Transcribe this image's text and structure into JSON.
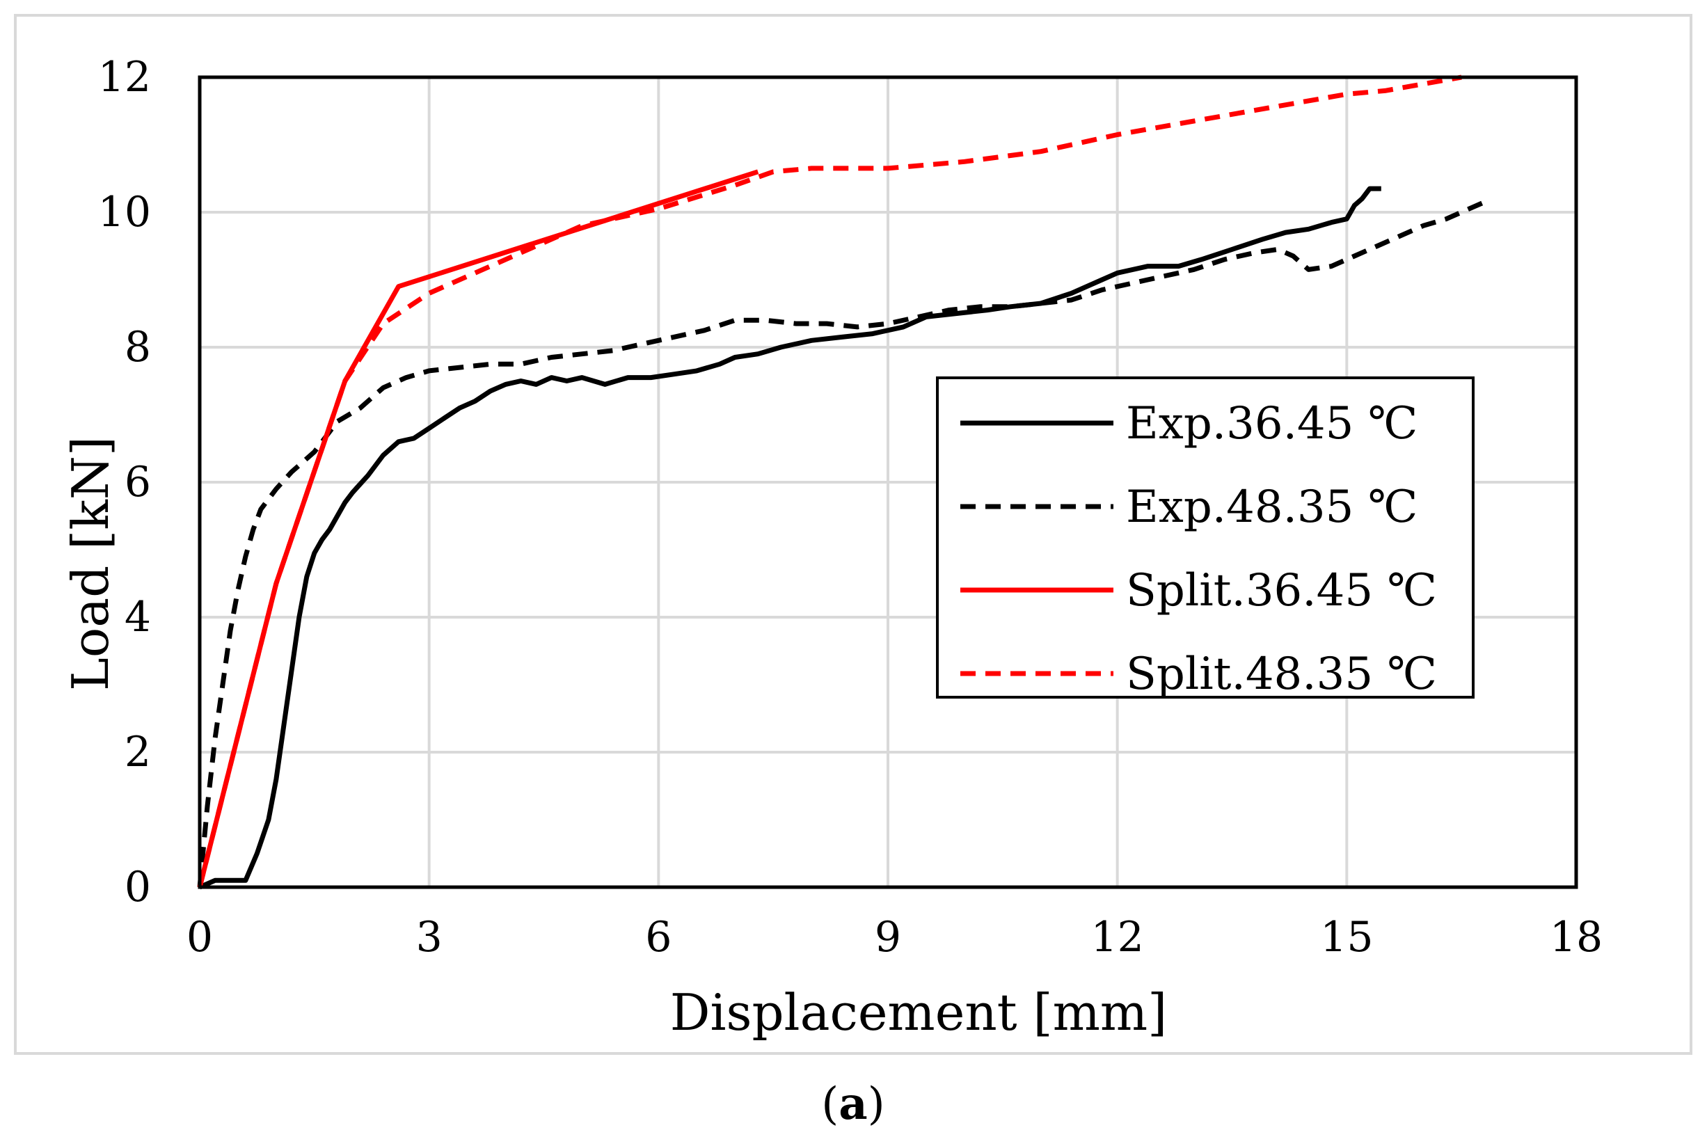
{
  "chart_data": {
    "type": "line",
    "title": "",
    "caption_open": "(",
    "caption_letter": "a",
    "caption_close": ")",
    "xlabel": "Displacement [mm]",
    "ylabel": "Load [kN]",
    "xlim": [
      0,
      18
    ],
    "ylim": [
      0,
      12
    ],
    "xticks": [
      0,
      3,
      6,
      9,
      12,
      15,
      18
    ],
    "yticks": [
      0,
      2,
      4,
      6,
      8,
      10,
      12
    ],
    "xtick_labels": [
      "0",
      "3",
      "6",
      "9",
      "12",
      "15",
      "18"
    ],
    "ytick_labels": [
      "0",
      "2",
      "4",
      "6",
      "8",
      "10",
      "12"
    ],
    "grid": true,
    "legend_position": "right-middle",
    "series": [
      {
        "name": "Exp.36.45 ℃",
        "color": "#000000",
        "style": "solid",
        "x": [
          0,
          0.2,
          0.6,
          0.75,
          0.9,
          1.0,
          1.1,
          1.2,
          1.3,
          1.4,
          1.5,
          1.6,
          1.7,
          1.8,
          1.9,
          2.0,
          2.2,
          2.4,
          2.6,
          2.8,
          3.0,
          3.2,
          3.4,
          3.6,
          3.8,
          4.0,
          4.2,
          4.4,
          4.6,
          4.8,
          5.0,
          5.3,
          5.6,
          5.9,
          6.2,
          6.5,
          6.8,
          7.0,
          7.3,
          7.6,
          8.0,
          8.4,
          8.8,
          9.2,
          9.5,
          9.9,
          10.3,
          10.6,
          11.0,
          11.4,
          11.8,
          12.0,
          12.4,
          12.8,
          13.1,
          13.5,
          13.9,
          14.2,
          14.5,
          14.8,
          15.0,
          15.1,
          15.2,
          15.3,
          15.45
        ],
        "y": [
          0,
          0.1,
          0.1,
          0.5,
          1.0,
          1.6,
          2.4,
          3.2,
          4.0,
          4.6,
          4.95,
          5.15,
          5.3,
          5.5,
          5.7,
          5.85,
          6.1,
          6.4,
          6.6,
          6.65,
          6.8,
          6.95,
          7.1,
          7.2,
          7.35,
          7.45,
          7.5,
          7.45,
          7.55,
          7.5,
          7.55,
          7.45,
          7.55,
          7.55,
          7.6,
          7.65,
          7.75,
          7.85,
          7.9,
          8.0,
          8.1,
          8.15,
          8.2,
          8.3,
          8.45,
          8.5,
          8.55,
          8.6,
          8.65,
          8.8,
          9.0,
          9.1,
          9.2,
          9.2,
          9.3,
          9.45,
          9.6,
          9.7,
          9.75,
          9.85,
          9.9,
          10.1,
          10.2,
          10.35,
          10.35
        ]
      },
      {
        "name": "Exp.48.35 ℃",
        "color": "#000000",
        "style": "dashed",
        "x": [
          0,
          0.1,
          0.2,
          0.3,
          0.4,
          0.5,
          0.6,
          0.7,
          0.8,
          1.0,
          1.2,
          1.5,
          1.8,
          2.1,
          2.4,
          2.7,
          3.0,
          3.4,
          3.8,
          4.2,
          4.6,
          5.0,
          5.4,
          5.8,
          6.2,
          6.6,
          7.0,
          7.4,
          7.8,
          8.2,
          8.6,
          9.0,
          9.4,
          9.8,
          10.2,
          10.6,
          11.0,
          11.4,
          11.8,
          12.2,
          12.6,
          13.0,
          13.4,
          13.8,
          14.1,
          14.3,
          14.5,
          14.8,
          15.1,
          15.4,
          15.7,
          16.0,
          16.3,
          16.6,
          16.8
        ],
        "y": [
          0,
          1.2,
          2.2,
          3.0,
          3.8,
          4.4,
          4.9,
          5.3,
          5.6,
          5.9,
          6.15,
          6.45,
          6.9,
          7.1,
          7.4,
          7.55,
          7.65,
          7.7,
          7.75,
          7.75,
          7.85,
          7.9,
          7.95,
          8.05,
          8.15,
          8.25,
          8.4,
          8.4,
          8.35,
          8.35,
          8.3,
          8.35,
          8.45,
          8.55,
          8.6,
          8.6,
          8.65,
          8.7,
          8.85,
          8.95,
          9.05,
          9.15,
          9.3,
          9.4,
          9.45,
          9.35,
          9.15,
          9.2,
          9.35,
          9.5,
          9.65,
          9.8,
          9.9,
          10.05,
          10.15
        ]
      },
      {
        "name": "Split.36.45 ℃",
        "color": "#ff0000",
        "style": "solid",
        "x": [
          0,
          1.0,
          1.9,
          2.6,
          7.3
        ],
        "y": [
          0,
          4.5,
          7.5,
          8.9,
          10.6
        ]
      },
      {
        "name": "Split.48.35 ℃",
        "color": "#ff0000",
        "style": "dashed",
        "x": [
          0,
          1.0,
          1.9,
          2.4,
          3.0,
          4.0,
          5.0,
          6.0,
          7.0,
          7.5,
          8.0,
          9.0,
          10.0,
          11.0,
          12.0,
          13.0,
          14.0,
          15.0,
          15.5,
          16.0,
          16.5
        ],
        "y": [
          0,
          4.5,
          7.5,
          8.35,
          8.8,
          9.3,
          9.8,
          10.05,
          10.4,
          10.6,
          10.65,
          10.65,
          10.75,
          10.9,
          11.15,
          11.35,
          11.55,
          11.75,
          11.8,
          11.9,
          12.0
        ]
      }
    ]
  }
}
